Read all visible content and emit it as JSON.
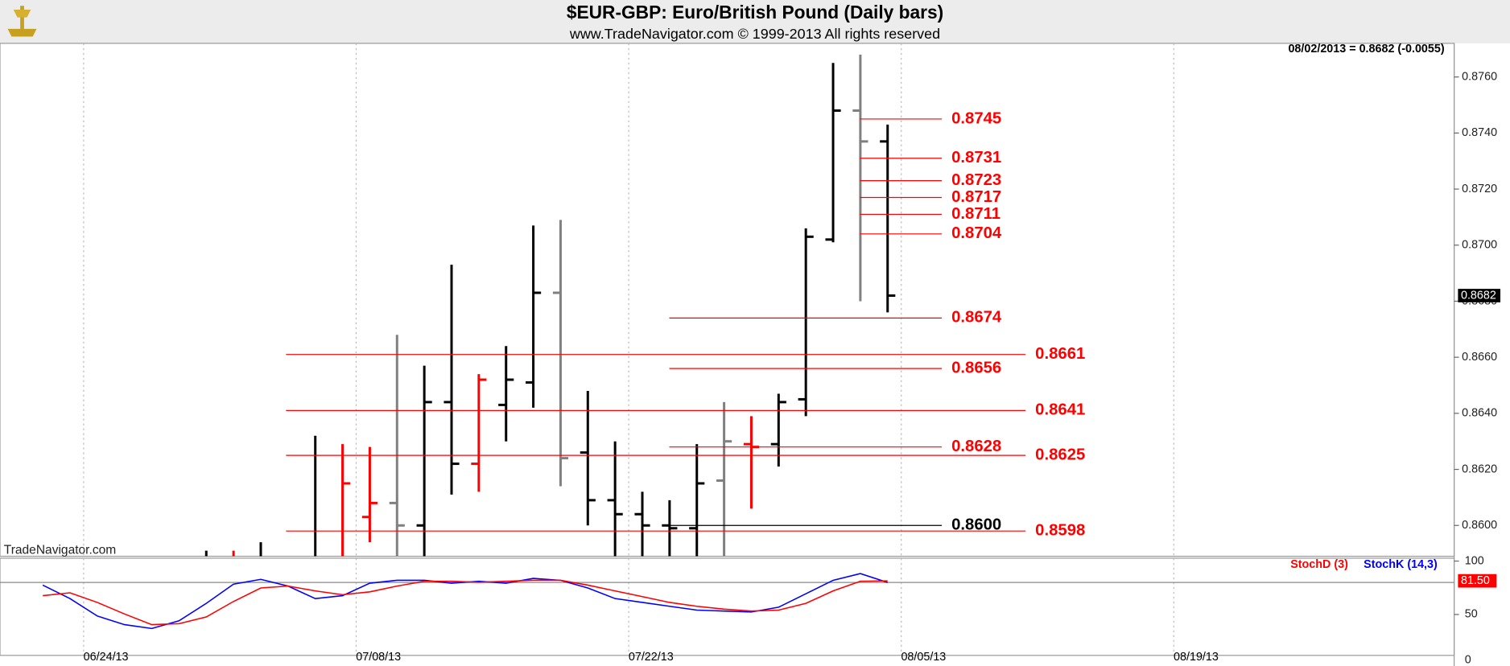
{
  "chart_data": [
    {
      "type": "ohlc",
      "title": "$EUR-GBP:  Euro/British Pound  (Daily bars)",
      "subtitle": "www.TradeNavigator.com © 1999-2013 All rights reserved",
      "header_text": "08/02/2013 = 0.8682 (-0.0055)",
      "watermark": "TradeNavigator.com",
      "last_value": 0.8682,
      "ohlc": {
        "open": [
          null,
          null,
          null,
          null,
          null,
          null,
          null,
          null,
          null,
          null,
          null,
          null,
          null,
          0.8603,
          0.8608,
          0.86,
          0.8644,
          0.8622,
          0.8643,
          0.8651,
          0.8683,
          0.8626,
          0.8609,
          0.8604,
          0.86,
          0.8599,
          0.8616,
          0.8629,
          0.8629,
          0.8645,
          0.8702,
          0.8748,
          0.8737,
          null,
          null,
          null,
          null,
          null,
          null,
          null,
          null,
          null,
          null,
          null,
          null,
          null,
          null,
          null,
          null,
          null,
          null,
          null,
          null
        ],
        "high": [
          null,
          null,
          null,
          null,
          null,
          null,
          null,
          0.8591,
          0.8591,
          0.8594,
          null,
          0.8632,
          0.8629,
          0.8628,
          0.8668,
          0.8657,
          0.8693,
          0.8654,
          0.8664,
          0.8707,
          0.8709,
          0.8648,
          0.863,
          0.8612,
          0.8609,
          0.8629,
          0.8644,
          0.8639,
          0.8647,
          0.8706,
          0.8765,
          0.8768,
          0.8743,
          null,
          null,
          null,
          null,
          null,
          null,
          null,
          null,
          null,
          null,
          null,
          null,
          null,
          null,
          null,
          null,
          null,
          null,
          null,
          null
        ],
        "low": [
          null,
          null,
          null,
          null,
          null,
          null,
          null,
          null,
          null,
          null,
          null,
          null,
          null,
          0.8594,
          null,
          null,
          0.8611,
          0.8612,
          0.863,
          0.8642,
          0.8614,
          0.86,
          null,
          null,
          null,
          null,
          null,
          0.8606,
          0.8621,
          0.8639,
          0.8701,
          0.868,
          0.8676,
          null,
          null,
          null,
          null,
          null,
          null,
          null,
          null,
          null,
          null,
          null,
          null,
          null,
          null,
          null,
          null,
          null,
          null,
          null,
          null
        ],
        "close": [
          null,
          null,
          null,
          null,
          null,
          null,
          null,
          null,
          null,
          null,
          null,
          null,
          0.8615,
          0.8608,
          0.86,
          0.8644,
          0.8622,
          0.8652,
          0.8652,
          0.8683,
          0.8624,
          0.8609,
          0.8604,
          0.86,
          0.8599,
          0.8615,
          0.863,
          0.8628,
          0.8644,
          0.8703,
          0.8748,
          0.8737,
          0.8682,
          null,
          null,
          null,
          null,
          null,
          null,
          null,
          null,
          null,
          null,
          null,
          null,
          null,
          null,
          null,
          null,
          null,
          null,
          null,
          null
        ],
        "colors": [
          null,
          null,
          null,
          null,
          null,
          null,
          null,
          "#000000",
          "#ff0000",
          "#000000",
          null,
          "#000000",
          "#ff0000",
          "#ff0000",
          "#808080",
          "#000000",
          "#000000",
          "#ff0000",
          "#000000",
          "#000000",
          "#808080",
          "#000000",
          "#000000",
          "#000000",
          "#000000",
          "#000000",
          "#808080",
          "#ff0000",
          "#000000",
          "#000000",
          "#000000",
          "#808080",
          "#000000",
          null,
          null,
          null,
          null,
          null,
          null,
          null,
          null,
          null,
          null,
          null,
          null,
          null,
          null,
          null,
          null,
          null,
          null,
          null,
          null
        ]
      },
      "levels": {
        "values": [
          0.8745,
          0.8731,
          0.8723,
          0.8717,
          0.8711,
          0.8704,
          0.8674,
          0.8661,
          0.8656,
          0.8641,
          0.8628,
          0.8625,
          0.86,
          0.8598
        ],
        "value_labels": [
          "0.8745",
          "0.8731",
          "0.8723",
          "0.8717",
          "0.8711",
          "0.8704",
          "0.8674",
          "0.8661",
          "0.8656",
          "0.8641",
          "0.8628",
          "0.8625",
          "0.8600",
          "0.8598"
        ],
        "colors": [
          "#ff0000",
          "#ff0000",
          "#ff0000",
          "#ff0000",
          "#ff0000",
          "#ff0000",
          "#ff0000",
          "#ff0000",
          "#ff0000",
          "#ff0000",
          "#ff0000",
          "#ff0000",
          "#000000",
          "#ff0000"
        ]
      },
      "ylim": [
        0.8589,
        0.8772
      ],
      "yticks": [
        {
          "value": 0.86,
          "label": "0.8600"
        },
        {
          "value": 0.862,
          "label": "0.8620"
        },
        {
          "value": 0.864,
          "label": "0.8640"
        },
        {
          "value": 0.866,
          "label": "0.8660"
        },
        {
          "value": 0.868,
          "label": "0.8680"
        },
        {
          "value": 0.87,
          "label": "0.8700"
        },
        {
          "value": 0.872,
          "label": "0.8720"
        },
        {
          "value": 0.874,
          "label": "0.8740"
        },
        {
          "value": 0.876,
          "label": "0.8760"
        }
      ]
    },
    {
      "type": "line",
      "categories": [
        null,
        null,
        null,
        "06/24/13",
        null,
        null,
        null,
        null,
        null,
        null,
        null,
        null,
        null,
        "07/08/13",
        null,
        null,
        null,
        null,
        null,
        null,
        null,
        null,
        null,
        "07/22/13",
        null,
        null,
        null,
        null,
        null,
        null,
        null,
        null,
        null,
        "08/05/13",
        null,
        null,
        null,
        null,
        null,
        null,
        null,
        null,
        null,
        "08/19/13",
        null,
        null,
        null,
        null,
        null,
        null,
        null,
        null,
        null
      ],
      "series": [
        {
          "name": "StochD (3)",
          "color": "#ff0000",
          "last_label": "81.50",
          "values": [
            null,
            67.6,
            70.3,
            61.3,
            50.5,
            40.5,
            41.4,
            47.7,
            62.2,
            74.8,
            76.6,
            72.1,
            68.5,
            71.2,
            76.6,
            81.1,
            81.1,
            80.2,
            81.1,
            82.0,
            82.0,
            77.5,
            72.1,
            66.7,
            61.3,
            57.7,
            55.0,
            53.2,
            54.1,
            60.4,
            72.1,
            81.1,
            81.5,
            null,
            null,
            null,
            null,
            null,
            null,
            null,
            null,
            null,
            null,
            null,
            null,
            null,
            null,
            null,
            null,
            null,
            null,
            null,
            null
          ]
        },
        {
          "name": "StochK (14,3)",
          "color": "#0000ff",
          "values": [
            null,
            77.5,
            64.9,
            48.6,
            40.5,
            36.9,
            44.1,
            60.4,
            78.4,
            82.9,
            76.6,
            64.9,
            67.6,
            79.3,
            82.0,
            82.0,
            79.3,
            81.1,
            79.3,
            83.8,
            82.0,
            74.8,
            64.9,
            61.3,
            57.7,
            54.1,
            53.2,
            52.3,
            56.8,
            69.4,
            82.0,
            88.3,
            80.0,
            null,
            null,
            null,
            null,
            null,
            null,
            null,
            null,
            null,
            null,
            null,
            null,
            null,
            null,
            null,
            null,
            null,
            null,
            null,
            null
          ]
        }
      ],
      "hlines": [
        80
      ],
      "ylim": [
        0,
        100
      ],
      "yticks": [
        0,
        50,
        100
      ]
    }
  ]
}
